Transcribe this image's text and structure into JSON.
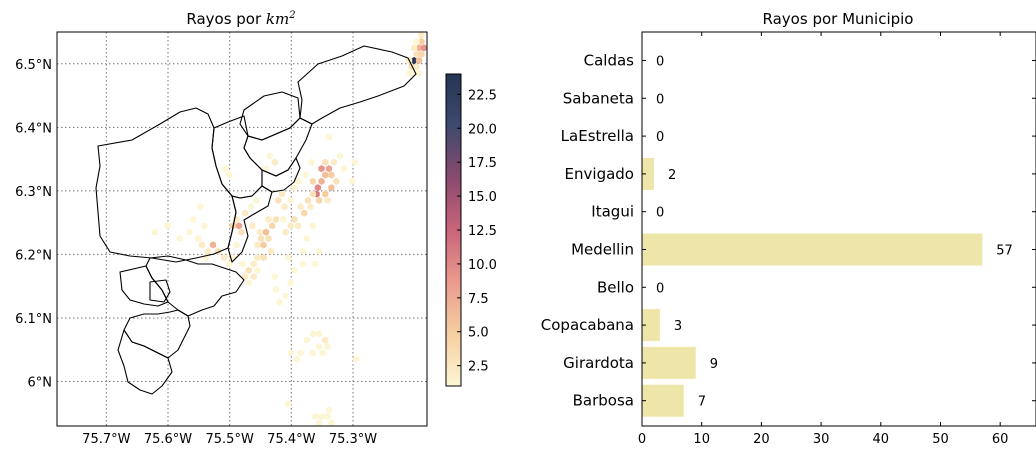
{
  "chart_data": [
    {
      "type": "heatmap",
      "title_text": "Rayos por ",
      "title_math": "km",
      "title_sup": "2",
      "xlim": [
        -75.78,
        -75.18
      ],
      "ylim": [
        5.93,
        6.55
      ],
      "grid": true,
      "x_ticks": [
        {
          "value": -75.7,
          "label": "75.7°W"
        },
        {
          "value": -75.6,
          "label": "75.6°W"
        },
        {
          "value": -75.5,
          "label": "75.5°W"
        },
        {
          "value": -75.4,
          "label": "75.4°W"
        },
        {
          "value": -75.3,
          "label": "75.3°W"
        }
      ],
      "y_ticks": [
        {
          "value": 6.5,
          "label": "6.5°N"
        },
        {
          "value": 6.4,
          "label": "6.4°N"
        },
        {
          "value": 6.3,
          "label": "6.3°N"
        },
        {
          "value": 6.2,
          "label": "6.2°N"
        },
        {
          "value": 6.1,
          "label": "6.1°N"
        },
        {
          "value": 6.0,
          "label": "6°N"
        }
      ],
      "colorbar": {
        "min": 1,
        "max": 24,
        "ticks": [
          2.5,
          5.0,
          7.5,
          10.0,
          12.5,
          15.0,
          17.5,
          20.0,
          22.5
        ],
        "tick_labels": [
          "2.5",
          "5.0",
          "7.5",
          "10.0",
          "12.5",
          "15.0",
          "17.5",
          "20.0",
          "22.5"
        ],
        "colors": [
          "#fdf6d4",
          "#f5cfa0",
          "#ea9b8e",
          "#c9647a",
          "#8a4a6e",
          "#3f4a6e",
          "#253553"
        ]
      },
      "hexbins": [
        [
          -75.197,
          6.515,
          3
        ],
        [
          -75.193,
          6.525,
          7
        ],
        [
          -75.189,
          6.535,
          5
        ],
        [
          -75.201,
          6.505,
          24
        ],
        [
          -75.205,
          6.495,
          3
        ],
        [
          -75.209,
          6.505,
          2
        ],
        [
          -75.193,
          6.505,
          6
        ],
        [
          -75.189,
          6.515,
          4
        ],
        [
          -75.201,
          6.525,
          2
        ],
        [
          -75.185,
          6.525,
          9
        ],
        [
          -75.189,
          6.545,
          2
        ],
        [
          -75.197,
          6.535,
          1
        ],
        [
          -75.205,
          6.485,
          1
        ],
        [
          -75.197,
          6.495,
          2
        ],
        [
          -75.193,
          6.485,
          1
        ],
        [
          -75.209,
          6.485,
          1
        ],
        [
          -75.339,
          6.335,
          8
        ],
        [
          -75.345,
          6.325,
          6
        ],
        [
          -75.335,
          6.325,
          5
        ],
        [
          -75.351,
          6.335,
          9
        ],
        [
          -75.351,
          6.315,
          7
        ],
        [
          -75.357,
          6.305,
          10
        ],
        [
          -75.365,
          6.315,
          4
        ],
        [
          -75.345,
          6.345,
          3
        ],
        [
          -75.331,
          6.345,
          2
        ],
        [
          -75.335,
          6.305,
          6
        ],
        [
          -75.327,
          6.315,
          3
        ],
        [
          -75.359,
          6.295,
          11
        ],
        [
          -75.355,
          6.285,
          4
        ],
        [
          -75.365,
          6.295,
          3
        ],
        [
          -75.345,
          6.295,
          5
        ],
        [
          -75.341,
          6.285,
          2
        ],
        [
          -75.373,
          6.285,
          3
        ],
        [
          -75.369,
          6.275,
          2
        ],
        [
          -75.379,
          6.265,
          4
        ],
        [
          -75.385,
          6.275,
          2
        ],
        [
          -75.395,
          6.255,
          3
        ],
        [
          -75.389,
          6.245,
          2
        ],
        [
          -75.401,
          6.245,
          2
        ],
        [
          -75.409,
          6.235,
          2
        ],
        [
          -75.413,
          6.255,
          1
        ],
        [
          -75.425,
          6.255,
          3
        ],
        [
          -75.431,
          6.245,
          4
        ],
        [
          -75.437,
          6.255,
          2
        ],
        [
          -75.441,
          6.235,
          6
        ],
        [
          -75.449,
          6.225,
          3
        ],
        [
          -75.445,
          6.215,
          5
        ],
        [
          -75.455,
          6.215,
          2
        ],
        [
          -75.437,
          6.225,
          3
        ],
        [
          -75.451,
          6.235,
          2
        ],
        [
          -75.433,
          6.205,
          2
        ],
        [
          -75.445,
          6.195,
          3
        ],
        [
          -75.455,
          6.195,
          2
        ],
        [
          -75.461,
          6.185,
          2
        ],
        [
          -75.469,
          6.175,
          3
        ],
        [
          -75.461,
          6.165,
          2
        ],
        [
          -75.455,
          6.175,
          1
        ],
        [
          -75.475,
          6.165,
          2
        ],
        [
          -75.479,
          6.185,
          1
        ],
        [
          -75.469,
          6.155,
          1
        ],
        [
          -75.485,
          6.245,
          8
        ],
        [
          -75.495,
          6.245,
          4
        ],
        [
          -75.489,
          6.255,
          2
        ],
        [
          -75.481,
          6.235,
          3
        ],
        [
          -75.463,
          6.245,
          2
        ],
        [
          -75.475,
          6.265,
          2
        ],
        [
          -75.465,
          6.275,
          1
        ],
        [
          -75.457,
          6.285,
          1
        ],
        [
          -75.527,
          6.215,
          7
        ],
        [
          -75.519,
          6.205,
          3
        ],
        [
          -75.535,
          6.205,
          2
        ],
        [
          -75.545,
          6.215,
          2
        ],
        [
          -75.551,
          6.225,
          1
        ],
        [
          -75.539,
          6.195,
          1
        ],
        [
          -75.509,
          6.195,
          2
        ],
        [
          -75.501,
          6.185,
          1
        ],
        [
          -75.581,
          6.225,
          1
        ],
        [
          -75.565,
          6.235,
          1
        ],
        [
          -75.489,
          6.215,
          1
        ],
        [
          -75.495,
          6.195,
          1
        ],
        [
          -75.415,
          6.295,
          2
        ],
        [
          -75.421,
          6.285,
          3
        ],
        [
          -75.411,
          6.275,
          2
        ],
        [
          -75.401,
          6.285,
          1
        ],
        [
          -75.395,
          6.305,
          1
        ],
        [
          -75.389,
          6.315,
          1
        ],
        [
          -75.377,
          6.325,
          1
        ],
        [
          -75.315,
          6.335,
          1
        ],
        [
          -75.301,
          6.315,
          1
        ],
        [
          -75.297,
          6.345,
          1
        ],
        [
          -75.321,
          6.355,
          1
        ],
        [
          -75.367,
          6.345,
          1
        ],
        [
          -75.427,
          6.345,
          2
        ],
        [
          -75.441,
          6.335,
          1
        ],
        [
          -75.435,
          6.355,
          1
        ],
        [
          -75.339,
          6.385,
          1
        ],
        [
          -75.507,
          6.335,
          1
        ],
        [
          -75.501,
          6.325,
          1
        ],
        [
          -75.427,
          6.165,
          1
        ],
        [
          -75.405,
          6.195,
          1
        ],
        [
          -75.419,
          6.125,
          1
        ],
        [
          -75.409,
          6.135,
          1
        ],
        [
          -75.601,
          6.245,
          1
        ],
        [
          -75.621,
          6.235,
          1
        ],
        [
          -75.547,
          6.275,
          1
        ],
        [
          -75.541,
          6.245,
          1
        ],
        [
          -75.559,
          6.255,
          1
        ],
        [
          -75.355,
          6.205,
          1
        ],
        [
          -75.365,
          6.245,
          1
        ],
        [
          -75.375,
          6.225,
          1
        ],
        [
          -75.381,
          6.205,
          1
        ],
        [
          -75.395,
          6.175,
          1
        ],
        [
          -75.401,
          6.155,
          1
        ],
        [
          -75.381,
          6.185,
          1
        ],
        [
          -75.361,
          6.185,
          1
        ],
        [
          -75.425,
          6.145,
          1
        ],
        [
          -75.355,
          6.075,
          1
        ],
        [
          -75.345,
          6.065,
          2
        ],
        [
          -75.365,
          6.075,
          1
        ],
        [
          -75.375,
          6.065,
          1
        ],
        [
          -75.355,
          6.055,
          1
        ],
        [
          -75.341,
          6.055,
          1
        ],
        [
          -75.385,
          6.045,
          1
        ],
        [
          -75.365,
          6.045,
          1
        ],
        [
          -75.349,
          6.045,
          1
        ],
        [
          -75.401,
          6.045,
          1
        ],
        [
          -75.391,
          6.035,
          1
        ],
        [
          -75.295,
          6.035,
          1
        ],
        [
          -75.361,
          5.945,
          1
        ],
        [
          -75.351,
          5.945,
          1
        ],
        [
          -75.341,
          5.945,
          1
        ],
        [
          -75.355,
          5.935,
          1
        ],
        [
          -75.335,
          5.935,
          1
        ],
        [
          -75.339,
          5.955,
          1
        ],
        [
          -75.405,
          5.965,
          1
        ]
      ]
    },
    {
      "type": "bar",
      "orientation": "horizontal",
      "title": "Rayos por Municipio",
      "categories": [
        "Caldas",
        "Sabaneta",
        "LaEstrella",
        "Envigado",
        "Itagui",
        "Medellin",
        "Bello",
        "Copacabana",
        "Girardota",
        "Barbosa"
      ],
      "values": [
        0,
        0,
        0,
        2,
        0,
        57,
        0,
        3,
        9,
        7
      ],
      "value_labels": [
        "0",
        "0",
        "0",
        "2",
        "0",
        "57",
        "0",
        "3",
        "9",
        "7"
      ],
      "xlim": [
        0,
        66
      ],
      "x_ticks": [
        0,
        10,
        20,
        30,
        40,
        50,
        60
      ],
      "x_tick_labels": [
        "0",
        "10",
        "20",
        "30",
        "40",
        "50",
        "60"
      ],
      "bar_color": "#eee6a8"
    }
  ]
}
